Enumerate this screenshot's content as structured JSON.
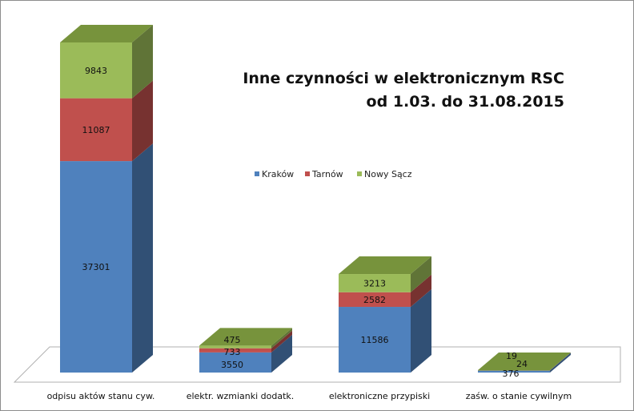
{
  "chart_data": {
    "type": "bar",
    "stacked": true,
    "three_d": true,
    "title_lines": [
      "Inne czynności w elektronicznym RSC",
      "od 1.03. do 31.08.2015"
    ],
    "categories": [
      "odpisu aktów stanu cyw.",
      "elektr. wzmianki dodatk.",
      "elektroniczne przypiski",
      "zaśw. o stanie cywilnym"
    ],
    "series": [
      {
        "name": "Kraków",
        "values": [
          37301,
          3550,
          11586,
          376
        ]
      },
      {
        "name": "Tarnów",
        "values": [
          11087,
          733,
          2582,
          24
        ]
      },
      {
        "name": "Nowy Sącz",
        "values": [
          9843,
          475,
          3213,
          19
        ]
      }
    ],
    "value_labels_shown": true,
    "legend_position": "top-right",
    "gridlines": false,
    "colors": {
      "Kraków": "#4f81bd",
      "Tarnów": "#c0504d",
      "Nowy Sącz": "#9bbb59"
    }
  }
}
